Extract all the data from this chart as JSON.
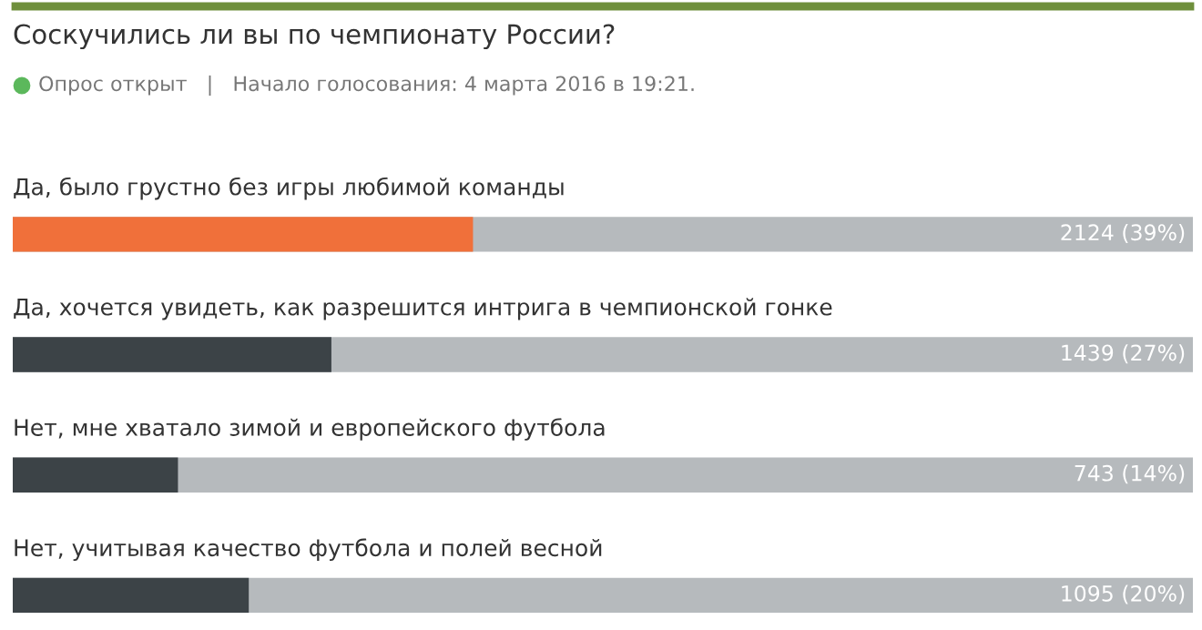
{
  "chart_data": {
    "type": "bar",
    "orientation": "horizontal",
    "title": "Соскучились ли вы по чемпионату России?",
    "subtitle": "Опрос открыт   |   Начало голосования: 4 марта 2016 в 19:21.",
    "categories": [
      "Да, было грустно без игры любимой команды",
      "Да, хочется увидеть, как разрешится интрига в чемпионской гонке",
      "Нет, мне хватало зимой и европейского футбола",
      "Нет, учитывая качество футбола и полей весной"
    ],
    "values": [
      39,
      27,
      14,
      20
    ],
    "colors": [
      "#f0703a",
      "#3c4347",
      "#3c4347",
      "#3c4347"
    ],
    "value_labels": [
      "2124 (39%)",
      "1439 (27%)",
      "743 (14%)",
      "1095 (20%)"
    ],
    "xlim": [
      0,
      100
    ],
    "legend": false
  }
}
